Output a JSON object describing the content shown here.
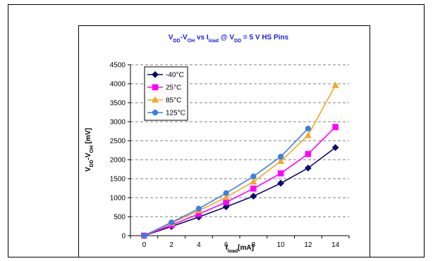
{
  "chart_data": {
    "type": "line",
    "title": {
      "parts": [
        {
          "t": "V",
          "sub": false
        },
        {
          "t": "DD",
          "sub": true
        },
        {
          "t": "-V",
          "sub": false
        },
        {
          "t": "OH",
          "sub": true
        },
        {
          "t": " vs I",
          "sub": false
        },
        {
          "t": "load",
          "sub": true
        },
        {
          "t": " @ V",
          "sub": false
        },
        {
          "t": "DD",
          "sub": true
        },
        {
          "t": " = 5 V  HS Pins",
          "sub": false
        }
      ]
    },
    "xlabel": {
      "parts": [
        {
          "t": "I",
          "sub": false
        },
        {
          "t": "load",
          "sub": true
        },
        {
          "t": "[mA]",
          "sub": false
        }
      ]
    },
    "ylabel": {
      "parts": [
        {
          "t": "V",
          "sub": false
        },
        {
          "t": "DD",
          "sub": true
        },
        {
          "t": "-V",
          "sub": false
        },
        {
          "t": "OH",
          "sub": true
        },
        {
          "t": " [mV]",
          "sub": false
        }
      ]
    },
    "x_ticks": [
      0,
      2,
      4,
      6,
      8,
      10,
      12,
      14
    ],
    "y_ticks": [
      0,
      500,
      1000,
      1500,
      2000,
      2500,
      3000,
      3500,
      4000,
      4500
    ],
    "xlim": [
      -1,
      15
    ],
    "ylim": [
      0,
      4500
    ],
    "grid": "horizontal dashed",
    "legend_position": "top-left",
    "series": [
      {
        "name": "-40°C",
        "color": "#0a0a6e",
        "marker": "diamond",
        "x": [
          0,
          2,
          4,
          6,
          8,
          10,
          12,
          14
        ],
        "y": [
          0,
          240,
          490,
          760,
          1040,
          1380,
          1780,
          2320
        ]
      },
      {
        "name": "25°C",
        "color": "#ff00ff",
        "marker": "square",
        "x": [
          0,
          2,
          4,
          6,
          8,
          10,
          12,
          14
        ],
        "y": [
          0,
          280,
          570,
          880,
          1240,
          1640,
          2150,
          2860
        ]
      },
      {
        "name": "85°C",
        "color": "#f5a623",
        "marker": "triangle",
        "x": [
          0,
          2,
          4,
          6,
          8,
          10,
          12,
          14
        ],
        "y": [
          0,
          330,
          660,
          1010,
          1420,
          1960,
          2640,
          3960
        ]
      },
      {
        "name": "125°C",
        "color": "#3b7fe0",
        "marker": "circle",
        "x": [
          0,
          2,
          4,
          6,
          8,
          10,
          12
        ],
        "y": [
          0,
          350,
          710,
          1120,
          1560,
          2080,
          2820
        ]
      }
    ]
  }
}
